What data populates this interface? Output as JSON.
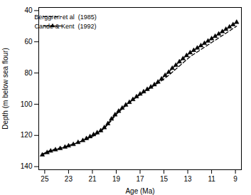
{
  "chart_data": {
    "type": "line",
    "xlabel": "Age (Ma)",
    "ylabel": "Depth (m below sea flour)",
    "xlim": [
      25.5,
      8.5
    ],
    "ylim": [
      142,
      38
    ],
    "xticks": [
      25,
      23,
      21,
      19,
      17,
      15,
      13,
      11,
      9
    ],
    "yticks": [
      40,
      60,
      80,
      100,
      120,
      140
    ],
    "grid": false,
    "legend": "upper left",
    "x": [
      25.2,
      24.8,
      24.5,
      24.1,
      23.7,
      23.3,
      23.0,
      22.6,
      22.2,
      21.8,
      21.5,
      21.2,
      20.9,
      20.6,
      20.3,
      20.0,
      19.7,
      19.4,
      19.1,
      18.8,
      18.5,
      18.2,
      17.9,
      17.6,
      17.3,
      17.0,
      16.7,
      16.4,
      16.1,
      15.8,
      15.5,
      15.2,
      14.9,
      14.6,
      14.3,
      14.0,
      13.7,
      13.4,
      13.1,
      12.8,
      12.5,
      12.2,
      11.9,
      11.6,
      11.3,
      11.0,
      10.7,
      10.4,
      10.1,
      9.8,
      9.5,
      9.2,
      8.9
    ],
    "series": [
      {
        "name": "Berggren et al  (1985)",
        "color": "#000000",
        "line_style": "dashed",
        "values": [
          132,
          130.5,
          129.5,
          128.8,
          128.0,
          127.2,
          126.5,
          125.5,
          124.5,
          123.5,
          122.5,
          121.5,
          120.3,
          119.0,
          117.5,
          115.5,
          113.0,
          110.5,
          107.5,
          105.0,
          103.0,
          101.0,
          99.0,
          97.2,
          95.5,
          94.0,
          92.5,
          91.0,
          89.5,
          88.0,
          86.5,
          85.0,
          83.2,
          81.5,
          79.5,
          77.5,
          75.5,
          73.5,
          71.5,
          69.5,
          68.0,
          66.5,
          65.0,
          63.5,
          62.0,
          60.5,
          59.0,
          57.5,
          56.0,
          54.5,
          53.0,
          51.5,
          50.0
        ]
      },
      {
        "name": "Cande & Kent  (1992)",
        "color": "#000000",
        "line_style": "solid",
        "marker": "triangle",
        "values": [
          132.5,
          131.0,
          130.0,
          129.2,
          128.4,
          127.5,
          126.7,
          125.8,
          124.5,
          123.3,
          122.0,
          120.8,
          119.5,
          118.3,
          117.0,
          115.0,
          112.5,
          109.5,
          106.8,
          104.5,
          102.5,
          100.5,
          98.8,
          97.0,
          95.2,
          93.5,
          92.0,
          90.5,
          89.0,
          87.5,
          85.8,
          83.8,
          81.5,
          79.5,
          77.0,
          75.0,
          72.8,
          70.8,
          68.8,
          67.0,
          65.5,
          64.0,
          62.5,
          61.0,
          59.5,
          58.0,
          56.5,
          55.0,
          53.5,
          52.0,
          50.5,
          49.0,
          47.5
        ]
      }
    ]
  }
}
